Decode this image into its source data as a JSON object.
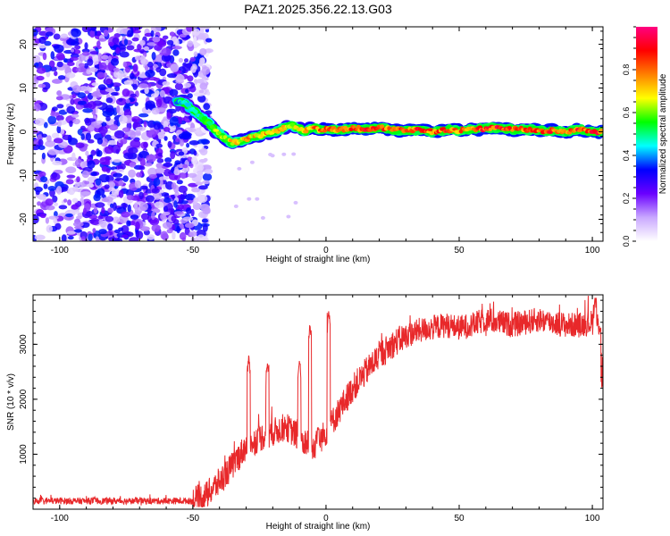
{
  "chart_data": [
    {
      "type": "heatmap",
      "title": "PAZ1.2025.356.22.13.G03",
      "xlabel": "Height of straight line (km)",
      "ylabel": "Frequency (Hz)",
      "xlim": [
        -110,
        104
      ],
      "ylim": [
        -25,
        24
      ],
      "xticks": [
        -100,
        -50,
        0,
        50,
        100
      ],
      "yticks": [
        -20,
        -10,
        0,
        10,
        20
      ],
      "colorbar": {
        "label": "Normalized spectral amplitude",
        "range": [
          0,
          1
        ],
        "ticks": [
          0.0,
          0.2,
          0.4,
          0.6,
          0.8
        ],
        "colors": [
          "#ffffff",
          "#c9a8ff",
          "#6a00ff",
          "#0000ff",
          "#00ffff",
          "#00ff00",
          "#ffff00",
          "#ff8000",
          "#ff0000",
          "#ff0080"
        ]
      },
      "signal_track": {
        "x": [
          -56,
          -53,
          -50,
          -47,
          -44,
          -41,
          -38,
          -35,
          -32,
          -29,
          -26,
          -23,
          -20,
          -17,
          -14,
          -11,
          -8,
          -5,
          -2,
          0,
          5,
          10,
          15,
          20,
          25,
          30,
          35,
          40,
          45,
          50,
          55,
          60,
          65,
          70,
          75,
          80,
          85,
          90,
          95,
          100,
          104
        ],
        "freq_hz": [
          7,
          6.5,
          5,
          3.5,
          2,
          0,
          -1.5,
          -2.5,
          -2,
          -1.5,
          -1,
          -0.5,
          0,
          0.5,
          1.5,
          1,
          0,
          1,
          0.5,
          0.5,
          0.5,
          0.8,
          0.5,
          1,
          0.5,
          0.3,
          0.5,
          0,
          0.5,
          0.3,
          0.5,
          0.8,
          1,
          0.5,
          0.5,
          0.3,
          0.3,
          0,
          0.5,
          0,
          0
        ],
        "amplitude": [
          0.45,
          0.5,
          0.5,
          0.55,
          0.6,
          0.65,
          0.7,
          0.75,
          0.72,
          0.78,
          0.75,
          0.8,
          0.72,
          0.78,
          0.65,
          0.7,
          0.75,
          0.8,
          0.85,
          0.85,
          0.85,
          0.9,
          0.92,
          0.9,
          0.85,
          0.88,
          0.9,
          0.85,
          0.9,
          0.85,
          0.88,
          0.9,
          0.92,
          0.88,
          0.85,
          0.9,
          0.88,
          0.85,
          0.9,
          0.92,
          0.9
        ]
      },
      "noise_region_x": [
        -110,
        -50
      ],
      "noise_amplitude_range": [
        0.05,
        0.3
      ]
    },
    {
      "type": "line",
      "xlabel": "Height of straight line (km)",
      "ylabel": "SNR (10 * v/v)",
      "xlim": [
        -110,
        104
      ],
      "ylim": [
        0,
        3900
      ],
      "xticks": [
        -100,
        -50,
        0,
        50,
        100
      ],
      "yticks": [
        1000,
        2000,
        3000
      ],
      "color": "#e8282a",
      "envelope": {
        "x": [
          -110,
          -50,
          -45,
          -40,
          -35,
          -30,
          -25,
          -20,
          -15,
          -10,
          -5,
          0,
          5,
          10,
          15,
          20,
          25,
          30,
          35,
          40,
          45,
          50,
          55,
          60,
          65,
          70,
          75,
          80,
          85,
          90,
          95,
          100,
          104
        ],
        "snr": [
          150,
          150,
          250,
          500,
          800,
          1150,
          1300,
          1400,
          1500,
          1300,
          1100,
          1400,
          1800,
          2200,
          2500,
          2800,
          3000,
          3150,
          3250,
          3300,
          3350,
          3300,
          3350,
          3450,
          3400,
          3350,
          3400,
          3450,
          3400,
          3350,
          3350,
          3400,
          3350
        ]
      },
      "spikes": [
        {
          "x": -29,
          "snr": 2800
        },
        {
          "x": -22,
          "snr": 2650
        },
        {
          "x": -10,
          "snr": 2700
        },
        {
          "x": -6,
          "snr": 3350
        },
        {
          "x": -3,
          "snr": 1500
        },
        {
          "x": 1,
          "snr": 3600
        },
        {
          "x": 101,
          "snr": 3850
        }
      ]
    }
  ]
}
